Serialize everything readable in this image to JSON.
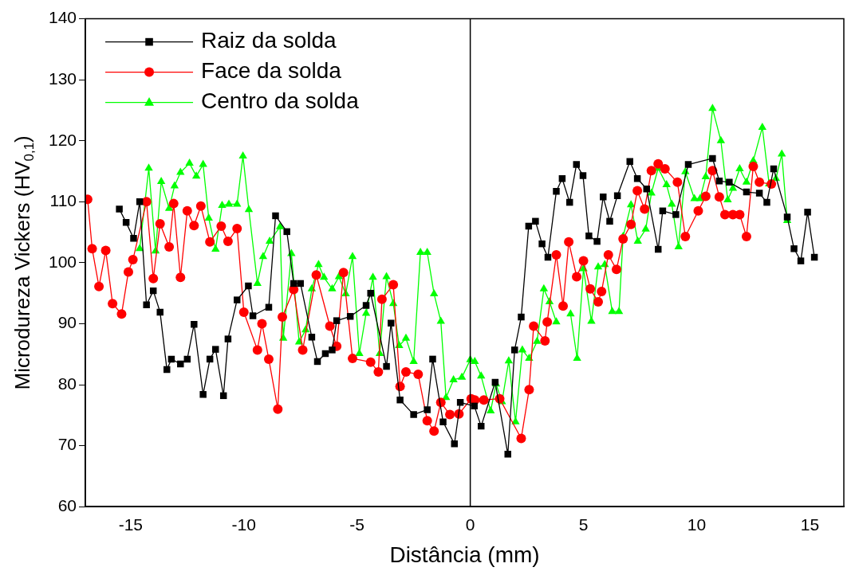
{
  "chart_data": {
    "type": "line",
    "xlabel": "Distância (mm)",
    "ylabel": "Microdureza Vickers (HV$_{0,1}$)",
    "xlim": [
      -17,
      16.5
    ],
    "xticks": [
      -15,
      -10,
      -5,
      0,
      5,
      10,
      15
    ],
    "ylim": [
      60,
      140
    ],
    "yticks": [
      60,
      70,
      80,
      90,
      100,
      110,
      120,
      130,
      140
    ],
    "grid": false,
    "legend": "top left",
    "line_style": "solid",
    "ref_lines": [
      {
        "axis": "x",
        "value": 0,
        "color": "#000000"
      }
    ],
    "series": [
      {
        "name": "Raiz da solda",
        "color": "#000000",
        "marker": "square",
        "x": [
          -15.5,
          -15.2,
          -14.87,
          -14.6,
          -14.3,
          -14.0,
          -13.7,
          -13.4,
          -13.2,
          -12.8,
          -12.5,
          -12.2,
          -11.8,
          -11.5,
          -11.25,
          -10.9,
          -10.7,
          -10.3,
          -9.8,
          -9.6,
          -8.9,
          -8.6,
          -8.1,
          -7.8,
          -7.5,
          -7.0,
          -6.75,
          -6.4,
          -6.1,
          -5.9,
          -5.3,
          -4.6,
          -4.4,
          -3.7,
          -3.5,
          -3.1,
          -2.5,
          -1.9,
          -1.66,
          -1.2,
          -0.7,
          -0.44,
          0.18,
          0.48,
          1.1,
          1.66,
          1.96,
          2.25,
          2.58,
          2.88,
          3.17,
          3.43,
          3.8,
          4.06,
          4.39,
          4.69,
          4.98,
          5.24,
          5.6,
          5.87,
          6.16,
          6.5,
          7.05,
          7.38,
          7.79,
          8.3,
          8.5,
          9.08,
          9.63,
          10.7,
          11.0,
          11.44,
          12.2,
          12.77,
          13.1,
          13.4,
          14.0,
          14.3,
          14.6,
          14.9,
          15.2
        ],
        "values": [
          108.8,
          106.6,
          104.0,
          110.0,
          93.1,
          95.4,
          91.9,
          82.5,
          84.2,
          83.4,
          84.2,
          89.9,
          78.4,
          84.2,
          85.8,
          78.2,
          87.5,
          93.9,
          96.2,
          91.3,
          92.7,
          107.7,
          105.1,
          96.6,
          96.6,
          87.8,
          83.8,
          85.1,
          85.7,
          90.5,
          91.2,
          93.0,
          95.0,
          83.0,
          90.1,
          77.5,
          75.1,
          75.9,
          84.2,
          73.9,
          70.3,
          77.1,
          76.5,
          73.2,
          80.4,
          68.6,
          85.7,
          91.1,
          106.0,
          106.8,
          103.1,
          100.9,
          111.7,
          113.8,
          109.9,
          116.1,
          114.3,
          104.4,
          103.5,
          110.8,
          106.8,
          111.0,
          116.6,
          113.8,
          112.1,
          102.2,
          108.5,
          107.9,
          116.1,
          117.1,
          113.4,
          113.2,
          111.6,
          111.4,
          109.9,
          115.4,
          107.5,
          102.3,
          100.3,
          108.3,
          100.9
        ]
      },
      {
        "name": "Face da solda",
        "color": "#ff0000",
        "marker": "circle",
        "x": [
          -16.9,
          -16.7,
          -16.4,
          -16.1,
          -15.8,
          -15.4,
          -15.1,
          -14.9,
          -14.3,
          -14.0,
          -13.7,
          -13.3,
          -13.1,
          -12.8,
          -12.5,
          -12.2,
          -11.9,
          -11.5,
          -11.0,
          -10.7,
          -10.3,
          -10.0,
          -9.4,
          -9.2,
          -8.9,
          -8.5,
          -8.3,
          -7.8,
          -7.4,
          -6.8,
          -6.2,
          -5.9,
          -5.6,
          -5.2,
          -4.4,
          -4.06,
          -3.9,
          -3.4,
          -3.1,
          -2.84,
          -2.3,
          -1.9,
          -1.6,
          -1.3,
          -0.9,
          -0.5,
          0.04,
          0.2,
          0.6,
          1.3,
          2.25,
          2.6,
          2.8,
          3.3,
          3.4,
          3.8,
          4.1,
          4.35,
          4.7,
          5.0,
          5.3,
          5.65,
          5.8,
          6.1,
          6.46,
          6.75,
          7.1,
          7.38,
          7.7,
          8.0,
          8.3,
          8.6,
          9.15,
          9.5,
          10.07,
          10.4,
          10.7,
          11.0,
          11.25,
          11.6,
          11.9,
          12.2,
          12.5,
          12.77,
          13.3
        ],
        "values": [
          110.4,
          102.3,
          96.1,
          102.0,
          93.3,
          91.6,
          98.5,
          100.5,
          110.0,
          97.4,
          106.4,
          102.6,
          109.7,
          97.6,
          108.5,
          106.1,
          109.3,
          103.4,
          106.0,
          103.5,
          105.6,
          91.9,
          85.7,
          90.0,
          84.2,
          76.0,
          91.1,
          95.6,
          85.7,
          98.0,
          89.6,
          86.3,
          98.4,
          84.3,
          83.7,
          82.1,
          94.0,
          96.4,
          79.7,
          82.1,
          81.7,
          74.1,
          72.4,
          77.1,
          75.1,
          75.2,
          77.7,
          77.5,
          77.5,
          77.7,
          71.2,
          79.2,
          89.6,
          87.2,
          90.3,
          101.3,
          92.9,
          103.4,
          97.7,
          100.3,
          95.7,
          93.6,
          95.3,
          101.3,
          98.9,
          103.9,
          106.3,
          111.8,
          108.8,
          115.1,
          116.2,
          115.4,
          113.2,
          104.3,
          108.5,
          110.9,
          115.1,
          110.8,
          107.9,
          107.9,
          107.9,
          104.3,
          115.8,
          113.2,
          112.9
        ]
      },
      {
        "name": "Centro da solda",
        "color": "#00ff00",
        "marker": "triangle",
        "x": [
          -14.6,
          -14.2,
          -13.9,
          -13.65,
          -13.3,
          -13.06,
          -12.8,
          -12.4,
          -12.1,
          -11.8,
          -11.55,
          -11.25,
          -10.96,
          -10.66,
          -10.3,
          -10.04,
          -9.78,
          -9.4,
          -9.15,
          -8.86,
          -8.4,
          -8.26,
          -7.9,
          -7.56,
          -7.27,
          -7.0,
          -6.7,
          -6.46,
          -6.1,
          -5.8,
          -5.5,
          -5.2,
          -4.9,
          -4.6,
          -4.3,
          -4.0,
          -3.7,
          -3.4,
          -3.14,
          -2.84,
          -2.5,
          -2.2,
          -1.9,
          -1.6,
          -1.3,
          -1.07,
          -0.74,
          -0.37,
          0.0,
          0.2,
          0.48,
          0.9,
          1.14,
          1.4,
          1.7,
          2.0,
          2.3,
          2.6,
          2.95,
          3.25,
          3.5,
          3.8,
          4.1,
          4.43,
          4.72,
          5.0,
          5.35,
          5.65,
          5.94,
          6.27,
          6.57,
          6.75,
          7.1,
          7.4,
          7.75,
          8.0,
          8.3,
          8.67,
          8.9,
          9.2,
          9.5,
          9.9,
          10.15,
          10.4,
          10.7,
          11.07,
          11.37,
          11.6,
          11.9,
          12.2,
          12.5,
          12.9,
          13.2,
          13.5,
          13.76,
          14.0
        ],
        "values": [
          102.3,
          115.5,
          101.9,
          113.3,
          108.9,
          112.6,
          114.8,
          116.3,
          114.2,
          116.1,
          107.3,
          102.2,
          109.4,
          109.6,
          109.6,
          117.5,
          108.7,
          96.6,
          101.0,
          103.5,
          105.9,
          87.6,
          101.5,
          87.0,
          89.0,
          95.7,
          99.7,
          97.6,
          95.7,
          97.7,
          94.9,
          101.0,
          85.1,
          91.7,
          97.6,
          85.1,
          97.7,
          93.3,
          86.4,
          87.6,
          83.8,
          101.7,
          101.7,
          94.9,
          90.4,
          77.9,
          80.8,
          81.2,
          84.1,
          83.8,
          81.4,
          75.7,
          80.1,
          77.2,
          83.9,
          73.9,
          85.7,
          84.3,
          87.1,
          95.7,
          93.6,
          90.3,
          null,
          91.6,
          84.3,
          99.0,
          90.4,
          99.3,
          99.7,
          92.0,
          92.0,
          104.3,
          109.5,
          103.5,
          105.5,
          111.4,
          115.5,
          112.8,
          109.6,
          102.6,
          114.9,
          110.5,
          110.5,
          114.1,
          125.3,
          120.0,
          110.3,
          112.2,
          115.4,
          113.2,
          116.7,
          122.2,
          112.9,
          113.8,
          117.8,
          106.9
        ]
      }
    ]
  }
}
